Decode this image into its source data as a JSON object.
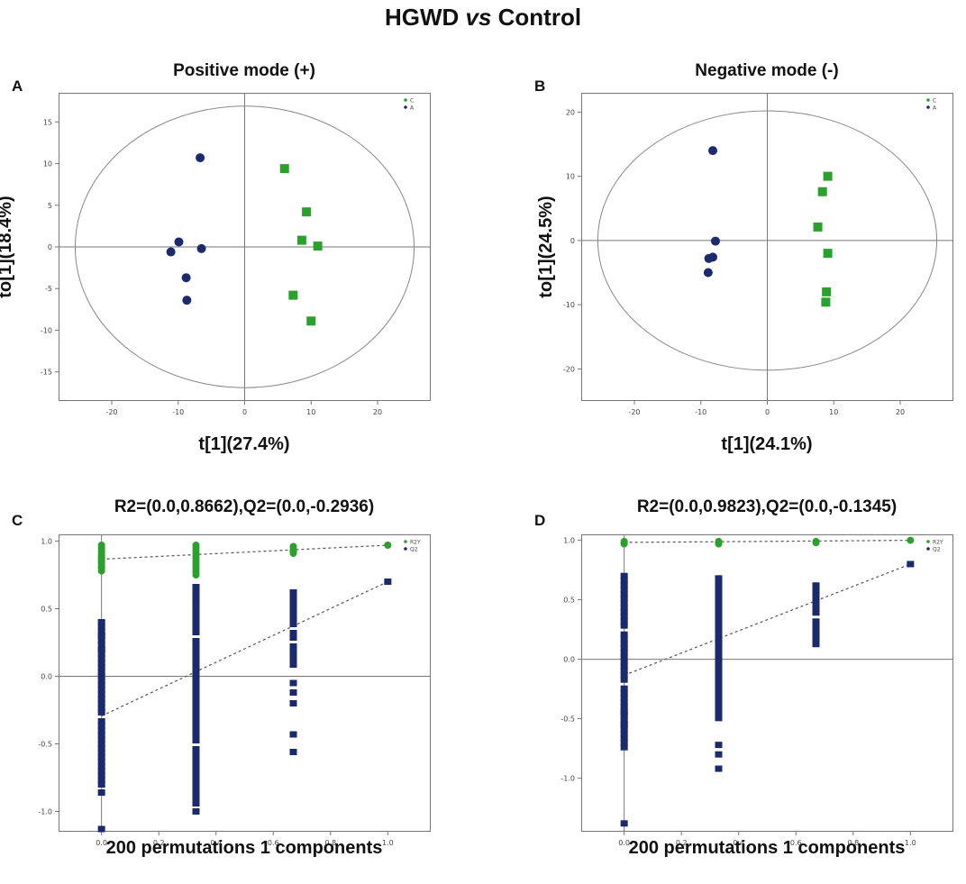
{
  "figure": {
    "title_prefix": "HGWD ",
    "title_vs": "vs",
    "title_suffix": " Control"
  },
  "colors": {
    "green": "#2ca02c",
    "navy": "#1a2a6c",
    "axis": "#777777",
    "dashed": "#555555"
  },
  "chart_data": [
    {
      "panel": "A",
      "type": "scatter",
      "title": "Positive mode (+)",
      "xlabel": "t[1](27.4%)",
      "ylabel": "to[1](18.4%)",
      "xlim": [
        -28,
        28
      ],
      "ylim": [
        -18.5,
        18.5
      ],
      "xticks": [
        -20,
        -10,
        0,
        10,
        20
      ],
      "yticks": [
        -15,
        -10,
        -5,
        0,
        5,
        10,
        15
      ],
      "ellipse": {
        "rx": 25.5,
        "ry": 16.9
      },
      "legend": [
        "C",
        "A"
      ],
      "series": [
        {
          "name": "C",
          "marker": "square",
          "color": "green",
          "points": [
            [
              6,
              9.4
            ],
            [
              9.3,
              4.2
            ],
            [
              8.6,
              0.8
            ],
            [
              11,
              0.1
            ],
            [
              7.3,
              -5.8
            ],
            [
              10,
              -8.9
            ]
          ]
        },
        {
          "name": "A",
          "marker": "circle",
          "color": "navy",
          "points": [
            [
              -6.7,
              10.7
            ],
            [
              -9.9,
              0.6
            ],
            [
              -11.1,
              -0.6
            ],
            [
              -6.5,
              -0.2
            ],
            [
              -8.8,
              -3.7
            ],
            [
              -8.7,
              -6.4
            ]
          ]
        }
      ]
    },
    {
      "panel": "B",
      "type": "scatter",
      "title": "Negative mode (-)",
      "xlabel": "t[1](24.1%)",
      "ylabel": "to[1](24.5%)",
      "xlim": [
        -28,
        28
      ],
      "ylim": [
        -25,
        23
      ],
      "xticks": [
        -20,
        -10,
        0,
        10,
        20
      ],
      "yticks": [
        -20,
        -10,
        0,
        10,
        20
      ],
      "ellipse": {
        "rx": 25.5,
        "ry": 20.2
      },
      "legend": [
        "C",
        "A"
      ],
      "series": [
        {
          "name": "C",
          "marker": "square",
          "color": "green",
          "points": [
            [
              9.1,
              10
            ],
            [
              8.3,
              7.6
            ],
            [
              7.6,
              2.1
            ],
            [
              9.1,
              -2
            ],
            [
              8.9,
              -8
            ],
            [
              8.8,
              -9.6
            ]
          ]
        },
        {
          "name": "A",
          "marker": "circle",
          "color": "navy",
          "points": [
            [
              -8.2,
              14
            ],
            [
              -7.8,
              -0.1
            ],
            [
              -8.2,
              -2.6
            ],
            [
              -8.8,
              -2.8
            ],
            [
              -8.9,
              -5
            ]
          ]
        }
      ]
    },
    {
      "panel": "C",
      "type": "scatter",
      "title": "R2=(0.0,0.8662),Q2=(0.0,-0.2936)",
      "xlabel": "200 permutations 1 components",
      "ylabel": "",
      "xlim": [
        -0.15,
        1.15
      ],
      "ylim": [
        -1.15,
        1.05
      ],
      "xticks": [
        0,
        0.2,
        0.4,
        0.6,
        0.8,
        1.0
      ],
      "xtick_labels": [
        "0.0",
        "0.2",
        "0.4",
        "0.6",
        "0.8",
        "1.0"
      ],
      "yticks": [
        -1.0,
        -0.5,
        0.0,
        0.5,
        1.0
      ],
      "ytick_labels": [
        "-1.0",
        "-0.5",
        "0.0",
        "0.5",
        "1.0"
      ],
      "legend": [
        "R2Y",
        "Q2"
      ],
      "r2y_intercept": 0.8662,
      "q2_intercept": -0.2936,
      "series": [
        {
          "name": "R2Y",
          "marker": "circle",
          "color": "green",
          "x": [
            0,
            0,
            0,
            0,
            0,
            0,
            0,
            0,
            0,
            0,
            0,
            0,
            0,
            0,
            0.33,
            0.33,
            0.33,
            0.33,
            0.33,
            0.33,
            0.33,
            0.33,
            0.33,
            0.33,
            0.33,
            0.33,
            0.67,
            0.67,
            0.67,
            0.67,
            0.67,
            1.0
          ],
          "y": [
            0.97,
            0.95,
            0.93,
            0.91,
            0.89,
            0.88,
            0.87,
            0.86,
            0.85,
            0.84,
            0.83,
            0.81,
            0.8,
            0.78,
            0.97,
            0.95,
            0.93,
            0.91,
            0.89,
            0.87,
            0.85,
            0.83,
            0.81,
            0.79,
            0.77,
            0.75,
            0.96,
            0.94,
            0.93,
            0.92,
            0.91,
            0.97
          ]
        },
        {
          "name": "Q2",
          "marker": "square",
          "color": "navy",
          "bars": [
            {
              "x": 0,
              "from": -0.8,
              "to": 0.4,
              "gaps": [
                -0.3,
                0.05
              ],
              "extra": [
                -0.86,
                -1.13,
                0.3,
                0.2
              ]
            },
            {
              "x": 0.33,
              "from": -0.96,
              "to": 0.66,
              "gaps": [
                -0.5,
                0.3
              ],
              "extra": [
                -1.0,
                0.55
              ]
            },
            {
              "x": 0.67,
              "from": 0.08,
              "to": 0.62,
              "gaps": [
                0.36,
                0.25
              ],
              "extra": [
                -0.05,
                -0.12,
                -0.2,
                -0.43,
                -0.56
              ]
            },
            {
              "x": 1.0,
              "from": 0.7,
              "to": 0.7,
              "gaps": [],
              "extra": []
            }
          ]
        }
      ]
    },
    {
      "panel": "D",
      "type": "scatter",
      "title": "R2=(0.0,0.9823),Q2=(0.0,-0.1345)",
      "xlabel": "200 permutations 1 components",
      "ylabel": "",
      "xlim": [
        -0.15,
        1.15
      ],
      "ylim": [
        -1.45,
        1.05
      ],
      "xticks": [
        0,
        0.2,
        0.4,
        0.6,
        0.8,
        1.0
      ],
      "xtick_labels": [
        "0.0",
        "0.2",
        "0.4",
        "0.6",
        "0.8",
        "1.0"
      ],
      "yticks": [
        -1.0,
        -0.5,
        0.0,
        0.5,
        1.0
      ],
      "ytick_labels": [
        "-1.0",
        "-0.5",
        "0.0",
        "0.5",
        "1.0"
      ],
      "legend": [
        "R2Y",
        "Q2"
      ],
      "r2y_intercept": 0.9823,
      "q2_intercept": -0.1345,
      "series": [
        {
          "name": "R2Y",
          "marker": "circle",
          "color": "green",
          "x": [
            0,
            0,
            0,
            0.33,
            0.33,
            0.33,
            0.67,
            0.67,
            1.0
          ],
          "y": [
            0.99,
            0.98,
            0.97,
            0.99,
            0.98,
            0.97,
            0.99,
            0.98,
            1.0
          ]
        },
        {
          "name": "Q2",
          "marker": "square",
          "color": "navy",
          "bars": [
            {
              "x": 0,
              "from": -0.75,
              "to": 0.7,
              "gaps": [
                -0.2,
                0.25
              ],
              "extra": [
                -1.38,
                -0.55,
                -0.45
              ]
            },
            {
              "x": 0.33,
              "from": -0.5,
              "to": 0.68,
              "gaps": [
                0.1,
                0.4
              ],
              "extra": [
                -0.72,
                -0.8,
                -0.92
              ]
            },
            {
              "x": 0.67,
              "from": 0.12,
              "to": 0.62,
              "gaps": [
                0.35
              ],
              "extra": []
            },
            {
              "x": 1.0,
              "from": 0.8,
              "to": 0.8,
              "gaps": [],
              "extra": []
            }
          ]
        }
      ]
    }
  ]
}
